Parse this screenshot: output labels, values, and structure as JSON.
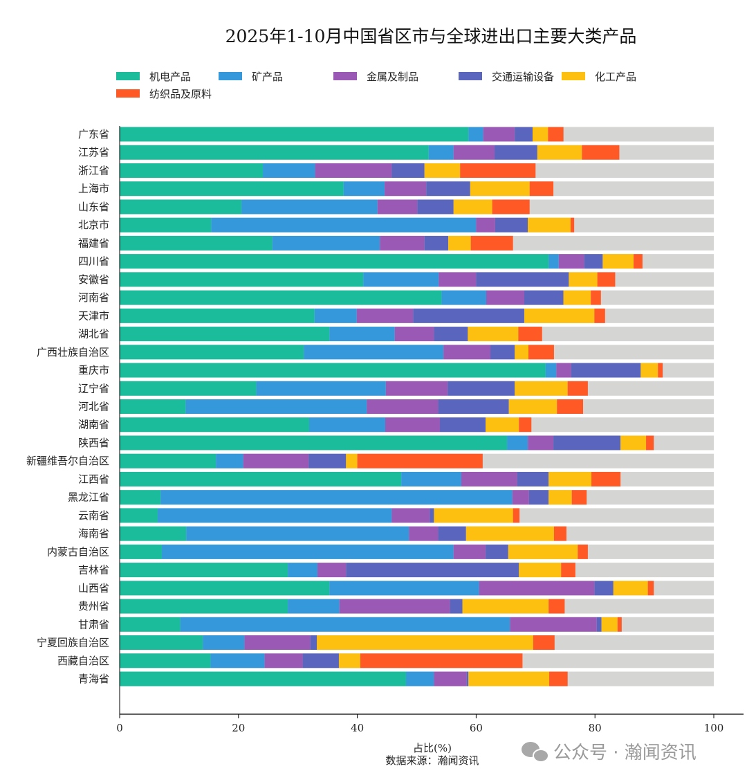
{
  "chart_data": {
    "type": "bar",
    "orientation": "horizontal",
    "stacked": true,
    "title": "2025年1-10月中国省区市与全球进出口主要大类产品",
    "xlabel": "占比(%)",
    "source": "数据来源：瀚闻资讯",
    "xlim": [
      0,
      100
    ],
    "xticks": [
      0,
      20,
      40,
      60,
      80,
      100
    ],
    "legend_position": "top",
    "remainder_color": "#d5d5d3",
    "categories": [
      "广东省",
      "江苏省",
      "浙江省",
      "上海市",
      "山东省",
      "北京市",
      "福建省",
      "四川省",
      "安徽省",
      "河南省",
      "天津市",
      "湖北省",
      "广西壮族自治区",
      "重庆市",
      "辽宁省",
      "河北省",
      "湖南省",
      "陕西省",
      "新疆维吾尔自治区",
      "江西省",
      "黑龙江省",
      "云南省",
      "海南省",
      "内蒙古自治区",
      "吉林省",
      "山西省",
      "贵州省",
      "甘肃省",
      "宁夏回族自治区",
      "西藏自治区",
      "青海省"
    ],
    "series": [
      {
        "name": "机电产品",
        "color": "#1abc9c",
        "values": [
          58.7,
          52.0,
          24.1,
          37.7,
          20.5,
          15.4,
          25.7,
          72.2,
          41.0,
          54.2,
          32.8,
          35.3,
          31.0,
          71.7,
          23.0,
          11.1,
          31.9,
          65.2,
          16.2,
          47.4,
          6.9,
          6.4,
          11.2,
          7.1,
          28.3,
          35.3,
          28.3,
          10.2,
          14.0,
          15.3,
          48.2
        ]
      },
      {
        "name": "矿产品",
        "color": "#3498db",
        "values": [
          2.5,
          4.2,
          8.8,
          6.9,
          22.9,
          44.6,
          18.1,
          1.7,
          12.7,
          7.5,
          7.1,
          11.0,
          23.5,
          1.8,
          21.8,
          30.5,
          12.8,
          3.5,
          4.6,
          10.1,
          59.2,
          39.4,
          37.5,
          49.1,
          5.0,
          25.2,
          8.7,
          55.5,
          7.0,
          9.1,
          4.7
        ]
      },
      {
        "name": "金属及制品",
        "color": "#9b59b6",
        "values": [
          5.3,
          6.9,
          12.9,
          7.0,
          6.7,
          3.2,
          7.5,
          4.3,
          6.3,
          6.4,
          9.5,
          6.6,
          7.9,
          2.5,
          10.4,
          12.0,
          9.2,
          4.3,
          11.0,
          9.4,
          2.8,
          6.4,
          4.9,
          5.4,
          4.8,
          19.4,
          18.6,
          14.6,
          11.1,
          6.4,
          5.5
        ]
      },
      {
        "name": "交通运输设备",
        "color": "#5a66bd",
        "values": [
          3.0,
          7.2,
          5.5,
          7.4,
          6.1,
          5.5,
          4.0,
          3.1,
          15.6,
          6.6,
          18.7,
          5.7,
          4.1,
          11.7,
          11.3,
          11.9,
          7.7,
          11.3,
          6.3,
          5.3,
          3.3,
          0.7,
          4.7,
          3.8,
          29.1,
          3.2,
          2.1,
          0.8,
          1.1,
          6.1,
          0.3
        ]
      },
      {
        "name": "化工产品",
        "color": "#fdc010",
        "values": [
          2.6,
          7.5,
          6.0,
          10.0,
          6.5,
          7.2,
          3.8,
          5.2,
          4.8,
          4.6,
          11.8,
          8.5,
          2.3,
          2.9,
          8.9,
          8.1,
          5.6,
          4.3,
          1.9,
          7.2,
          3.9,
          13.3,
          14.8,
          11.7,
          7.1,
          5.8,
          14.5,
          2.7,
          36.4,
          3.6,
          13.6
        ]
      },
      {
        "name": "纺织品及原料",
        "color": "#ff5a26",
        "values": [
          2.6,
          6.3,
          12.7,
          4.0,
          6.3,
          0.6,
          7.1,
          1.5,
          3.0,
          1.7,
          1.8,
          4.0,
          4.3,
          0.8,
          3.4,
          4.4,
          2.1,
          1.3,
          21.1,
          4.9,
          2.5,
          1.1,
          2.1,
          1.7,
          2.4,
          1.0,
          2.7,
          0.7,
          3.6,
          27.3,
          3.1
        ]
      }
    ]
  },
  "watermark": {
    "text": "公众号 · 瀚闻资讯",
    "icon": "wechat-icon"
  }
}
